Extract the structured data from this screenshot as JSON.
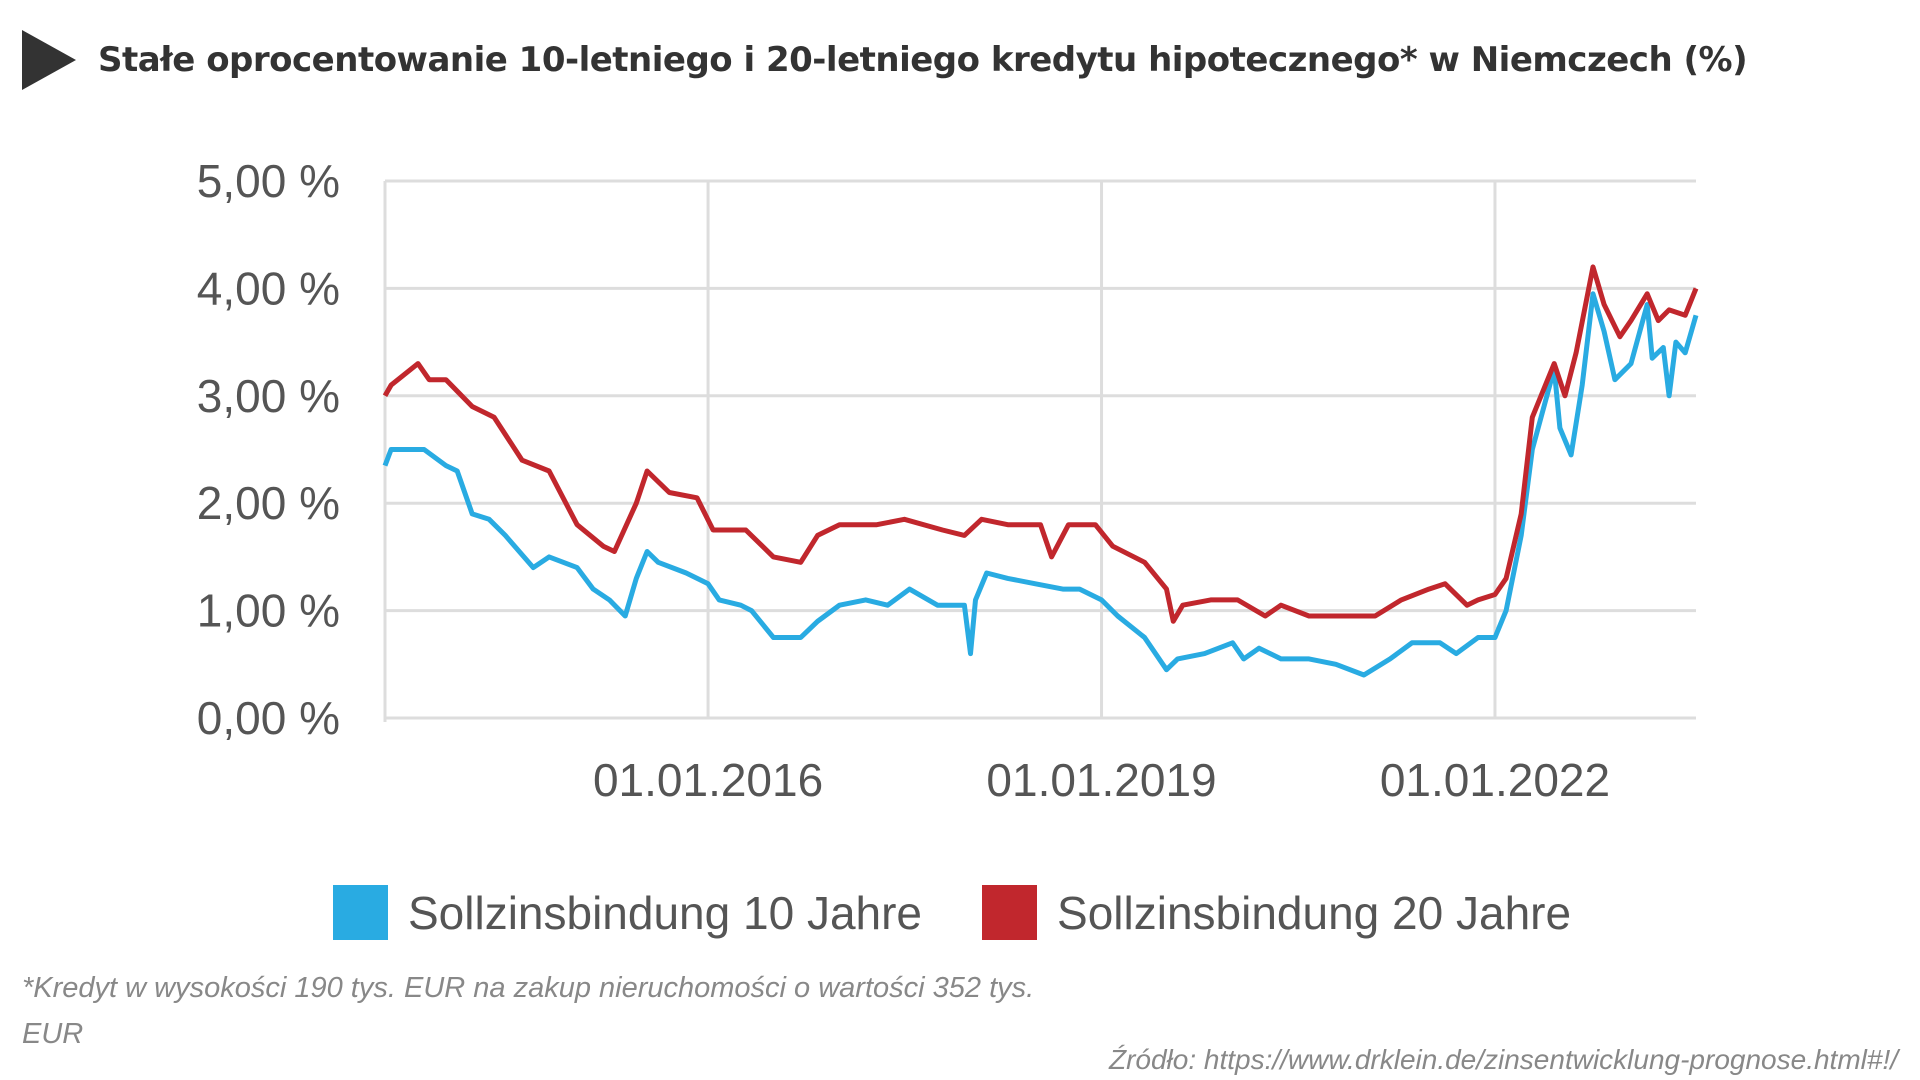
{
  "title": "Stałe oprocentowanie 10-letniego i 20-letniego kredytu hipotecznego* w Niemczech (%)",
  "footnote_line1": "*Kredyt w wysokości 190 tys. EUR na zakup nieruchomości o wartości 352 tys.",
  "footnote_line2": "EUR",
  "source": "Źródło: https://www.drklein.de/zinsentwicklung-prognose.html#!/",
  "chart_data": {
    "type": "line",
    "title": "",
    "xlabel": "",
    "ylabel": "",
    "xlim": [
      "2013-07-15",
      "2023-07-15"
    ],
    "ylim": [
      0,
      5
    ],
    "y_ticks": [
      "0,00 %",
      "1,00 %",
      "2,00 %",
      "3,00 %",
      "4,00 %",
      "5,00 %"
    ],
    "y_tick_values": [
      0,
      1,
      2,
      3,
      4,
      5
    ],
    "x_ticks": [
      "01.01.2016",
      "01.01.2019",
      "01.01.2022"
    ],
    "x_tick_values": [
      "2016-01-01",
      "2019-01-01",
      "2022-01-01"
    ],
    "grid": true,
    "legend_position": "bottom",
    "series": [
      {
        "name": "Sollzinsbindung 10 Jahre",
        "color": "#29ABE2",
        "points": [
          [
            "2013-07-15",
            2.35
          ],
          [
            "2013-08-01",
            2.5
          ],
          [
            "2013-09-15",
            2.5
          ],
          [
            "2013-11-01",
            2.5
          ],
          [
            "2014-01-01",
            2.35
          ],
          [
            "2014-02-01",
            2.3
          ],
          [
            "2014-03-15",
            1.9
          ],
          [
            "2014-05-01",
            1.85
          ],
          [
            "2014-06-15",
            1.7
          ],
          [
            "2014-09-01",
            1.4
          ],
          [
            "2014-10-15",
            1.5
          ],
          [
            "2015-01-01",
            1.4
          ],
          [
            "2015-02-15",
            1.2
          ],
          [
            "2015-04-01",
            1.1
          ],
          [
            "2015-05-15",
            0.95
          ],
          [
            "2015-06-15",
            1.3
          ],
          [
            "2015-07-15",
            1.55
          ],
          [
            "2015-08-15",
            1.45
          ],
          [
            "2015-11-01",
            1.35
          ],
          [
            "2016-01-01",
            1.25
          ],
          [
            "2016-02-01",
            1.1
          ],
          [
            "2016-04-01",
            1.05
          ],
          [
            "2016-05-01",
            1.0
          ],
          [
            "2016-07-01",
            0.75
          ],
          [
            "2016-09-15",
            0.75
          ],
          [
            "2016-11-01",
            0.9
          ],
          [
            "2017-01-01",
            1.05
          ],
          [
            "2017-03-15",
            1.1
          ],
          [
            "2017-05-15",
            1.05
          ],
          [
            "2017-07-15",
            1.2
          ],
          [
            "2017-10-01",
            1.05
          ],
          [
            "2017-12-15",
            1.05
          ],
          [
            "2018-01-01",
            0.6
          ],
          [
            "2018-01-15",
            1.1
          ],
          [
            "2018-02-15",
            1.35
          ],
          [
            "2018-04-15",
            1.3
          ],
          [
            "2018-07-01",
            1.25
          ],
          [
            "2018-09-15",
            1.2
          ],
          [
            "2018-11-01",
            1.2
          ],
          [
            "2019-01-01",
            1.1
          ],
          [
            "2019-02-15",
            0.95
          ],
          [
            "2019-05-01",
            0.75
          ],
          [
            "2019-07-01",
            0.45
          ],
          [
            "2019-08-01",
            0.55
          ],
          [
            "2019-10-15",
            0.6
          ],
          [
            "2020-01-01",
            0.7
          ],
          [
            "2020-02-01",
            0.55
          ],
          [
            "2020-03-15",
            0.65
          ],
          [
            "2020-05-15",
            0.55
          ],
          [
            "2020-08-01",
            0.55
          ],
          [
            "2020-10-15",
            0.5
          ],
          [
            "2021-01-01",
            0.4
          ],
          [
            "2021-03-15",
            0.55
          ],
          [
            "2021-05-15",
            0.7
          ],
          [
            "2021-08-01",
            0.7
          ],
          [
            "2021-09-15",
            0.6
          ],
          [
            "2021-11-15",
            0.75
          ],
          [
            "2022-01-01",
            0.75
          ],
          [
            "2022-02-01",
            1.0
          ],
          [
            "2022-03-15",
            1.7
          ],
          [
            "2022-04-15",
            2.5
          ],
          [
            "2022-06-15",
            3.25
          ],
          [
            "2022-07-01",
            2.7
          ],
          [
            "2022-08-01",
            2.45
          ],
          [
            "2022-09-01",
            3.1
          ],
          [
            "2022-10-01",
            3.95
          ],
          [
            "2022-11-01",
            3.6
          ],
          [
            "2022-12-01",
            3.15
          ],
          [
            "2023-01-15",
            3.3
          ],
          [
            "2023-03-01",
            3.85
          ],
          [
            "2023-03-15",
            3.35
          ],
          [
            "2023-04-15",
            3.45
          ],
          [
            "2023-05-01",
            3.0
          ],
          [
            "2023-05-20",
            3.5
          ],
          [
            "2023-06-15",
            3.4
          ],
          [
            "2023-07-15",
            3.75
          ]
        ]
      },
      {
        "name": "Sollzinsbindung 20 Jahre",
        "color": "#C1272D",
        "points": [
          [
            "2013-07-15",
            3.0
          ],
          [
            "2013-08-01",
            3.1
          ],
          [
            "2013-10-15",
            3.3
          ],
          [
            "2013-11-15",
            3.15
          ],
          [
            "2014-01-01",
            3.15
          ],
          [
            "2014-03-15",
            2.9
          ],
          [
            "2014-05-15",
            2.8
          ],
          [
            "2014-08-01",
            2.4
          ],
          [
            "2014-10-15",
            2.3
          ],
          [
            "2015-01-01",
            1.8
          ],
          [
            "2015-03-15",
            1.6
          ],
          [
            "2015-04-15",
            1.55
          ],
          [
            "2015-06-15",
            2.0
          ],
          [
            "2015-07-15",
            2.3
          ],
          [
            "2015-09-15",
            2.1
          ],
          [
            "2015-12-01",
            2.05
          ],
          [
            "2016-01-15",
            1.75
          ],
          [
            "2016-04-15",
            1.75
          ],
          [
            "2016-07-01",
            1.5
          ],
          [
            "2016-09-15",
            1.45
          ],
          [
            "2016-11-01",
            1.7
          ],
          [
            "2017-01-01",
            1.8
          ],
          [
            "2017-04-15",
            1.8
          ],
          [
            "2017-07-01",
            1.85
          ],
          [
            "2017-10-15",
            1.75
          ],
          [
            "2017-12-15",
            1.7
          ],
          [
            "2018-02-01",
            1.85
          ],
          [
            "2018-04-15",
            1.8
          ],
          [
            "2018-07-15",
            1.8
          ],
          [
            "2018-08-15",
            1.5
          ],
          [
            "2018-10-01",
            1.8
          ],
          [
            "2018-12-15",
            1.8
          ],
          [
            "2019-02-01",
            1.6
          ],
          [
            "2019-05-01",
            1.45
          ],
          [
            "2019-07-01",
            1.2
          ],
          [
            "2019-07-20",
            0.9
          ],
          [
            "2019-08-15",
            1.05
          ],
          [
            "2019-11-01",
            1.1
          ],
          [
            "2020-01-15",
            1.1
          ],
          [
            "2020-04-01",
            0.95
          ],
          [
            "2020-05-15",
            1.05
          ],
          [
            "2020-08-01",
            0.95
          ],
          [
            "2020-12-01",
            0.95
          ],
          [
            "2021-02-01",
            0.95
          ],
          [
            "2021-04-15",
            1.1
          ],
          [
            "2021-07-01",
            1.2
          ],
          [
            "2021-08-15",
            1.25
          ],
          [
            "2021-10-15",
            1.05
          ],
          [
            "2021-11-15",
            1.1
          ],
          [
            "2022-01-01",
            1.15
          ],
          [
            "2022-02-01",
            1.3
          ],
          [
            "2022-03-15",
            1.9
          ],
          [
            "2022-04-15",
            2.8
          ],
          [
            "2022-06-15",
            3.3
          ],
          [
            "2022-07-15",
            3.0
          ],
          [
            "2022-08-15",
            3.4
          ],
          [
            "2022-10-01",
            4.2
          ],
          [
            "2022-11-01",
            3.85
          ],
          [
            "2022-12-15",
            3.55
          ],
          [
            "2023-01-15",
            3.7
          ],
          [
            "2023-03-01",
            3.95
          ],
          [
            "2023-04-01",
            3.7
          ],
          [
            "2023-05-01",
            3.8
          ],
          [
            "2023-06-15",
            3.75
          ],
          [
            "2023-07-15",
            4.0
          ]
        ]
      }
    ]
  }
}
